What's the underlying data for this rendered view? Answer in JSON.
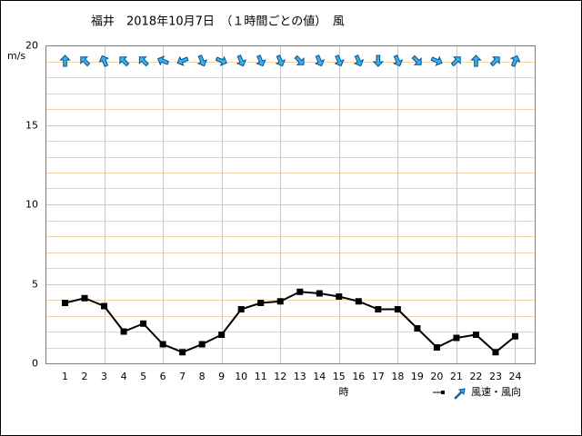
{
  "chart_data": {
    "type": "line",
    "title": "福井　2018年10月7日　（１時間ごとの値）　風",
    "y_label": "m/s",
    "x_label": "時",
    "legend_label": "風速・風向",
    "x": [
      1,
      2,
      3,
      4,
      5,
      6,
      7,
      8,
      9,
      10,
      11,
      12,
      13,
      14,
      15,
      16,
      17,
      18,
      19,
      20,
      21,
      22,
      23,
      24
    ],
    "values": [
      3.8,
      4.1,
      3.6,
      2.0,
      2.5,
      1.2,
      0.7,
      1.2,
      1.8,
      3.4,
      3.8,
      3.9,
      4.5,
      4.4,
      4.2,
      3.9,
      3.4,
      3.4,
      2.2,
      1.0,
      1.6,
      1.8,
      0.7,
      1.7
    ],
    "directions": [
      0,
      315,
      337.5,
      315,
      315,
      292.5,
      247.5,
      157.5,
      112.5,
      157.5,
      157.5,
      157.5,
      135,
      157.5,
      157.5,
      157.5,
      180,
      157.5,
      135,
      112.5,
      45,
      0,
      45,
      22.5
    ],
    "color": "#000000",
    "arrow_color": "#33b5f5",
    "xlim": [
      0,
      25
    ],
    "ylim": [
      0,
      20
    ],
    "yticks": [
      0,
      5,
      10,
      15,
      20
    ],
    "yminor": [
      1,
      2,
      3,
      4,
      6,
      7,
      8,
      9,
      11,
      12,
      13,
      14,
      16,
      17,
      18,
      19
    ],
    "xgrid": [
      3,
      6,
      9,
      12,
      15,
      18,
      21,
      24
    ],
    "grid": true
  }
}
